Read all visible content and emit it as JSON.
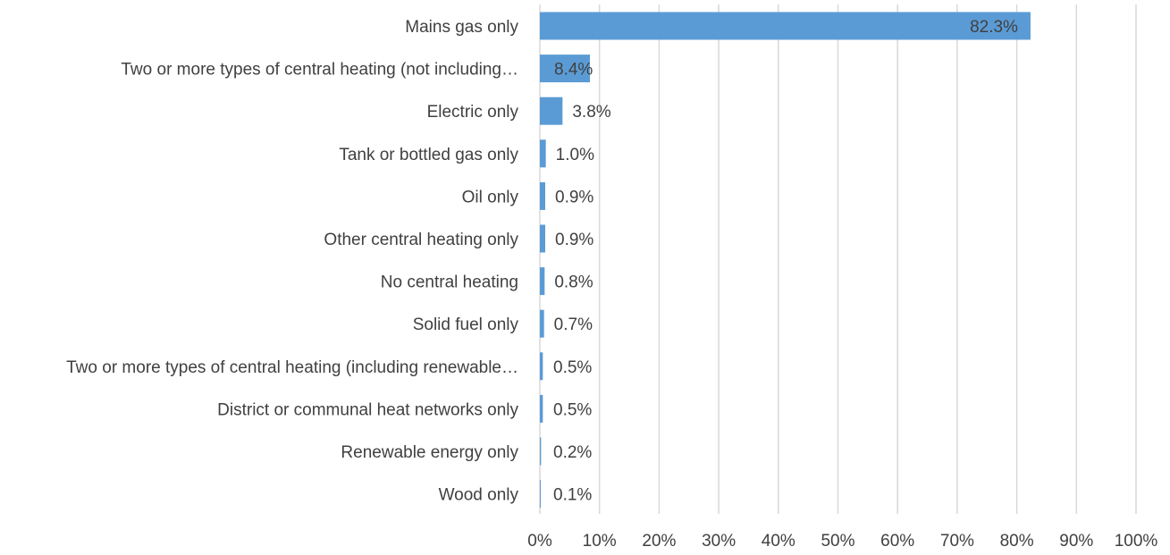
{
  "chart_data": {
    "type": "bar",
    "orientation": "horizontal",
    "title": "",
    "xlabel": "",
    "ylabel": "",
    "xlim": [
      0,
      100
    ],
    "grid": true,
    "legend": "none",
    "bar_color": "#5b9bd5",
    "grid_color": "#d9d9d9",
    "text_color": "#404040",
    "ticks": [
      "0%",
      "10%",
      "20%",
      "30%",
      "40%",
      "50%",
      "60%",
      "70%",
      "80%",
      "90%",
      "100%"
    ],
    "categories": [
      "Mains gas only",
      "Two or more types of central heating (not including…",
      "Electric only",
      "Tank or bottled gas only",
      "Oil only",
      "Other central heating only",
      "No central heating",
      "Solid fuel only",
      "Two or more types of central heating (including renewable…",
      "District or communal heat networks only",
      "Renewable energy only",
      "Wood only"
    ],
    "values": [
      82.3,
      8.4,
      3.8,
      1.0,
      0.9,
      0.9,
      0.8,
      0.7,
      0.5,
      0.5,
      0.2,
      0.1
    ],
    "value_labels": [
      "82.3%",
      "8.4%",
      "3.8%",
      "1.0%",
      "0.9%",
      "0.9%",
      "0.8%",
      "0.7%",
      "0.5%",
      "0.5%",
      "0.2%",
      "0.1%"
    ]
  }
}
